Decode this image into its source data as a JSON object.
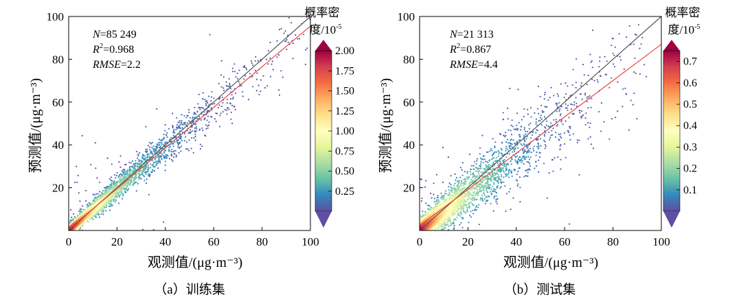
{
  "chart_data": [
    {
      "type": "scatter",
      "caption": "（a）训练集",
      "xlabel": "观测值/(μg·m⁻³)",
      "ylabel": "预测值/(μg·m⁻³)",
      "xlim": [
        0,
        100
      ],
      "ylim": [
        0,
        100
      ],
      "xticks": [
        "0",
        "20",
        "40",
        "60",
        "80",
        "100"
      ],
      "yticks": [
        "20",
        "40",
        "60",
        "80",
        "100"
      ],
      "stats": {
        "n_label": "N",
        "n_value": "=85 249",
        "r2_label": "R",
        "r2_sup": "2",
        "r2_value": "=0.968",
        "rmse_label": "RMSE",
        "rmse_value": "=2.2"
      },
      "colorbar": {
        "title_line1": "概率密",
        "title_line2": "度/10",
        "title_sup": "-5",
        "min": 0,
        "max": 2.0,
        "ticks": [
          "0.25",
          "0.50",
          "0.75",
          "1.00",
          "1.25",
          "1.50",
          "1.75",
          "2.00"
        ],
        "tick_values": [
          0.25,
          0.5,
          0.75,
          1.0,
          1.25,
          1.5,
          1.75,
          2.0
        ]
      },
      "identity_line": {
        "x": [
          0,
          100
        ],
        "y": [
          0,
          100
        ],
        "color": "#555555"
      },
      "fit_line": {
        "x": [
          0,
          100
        ],
        "y": [
          0.6,
          95.5
        ],
        "color": "#e8413c"
      },
      "point_cloud": {
        "x_range": [
          0,
          100
        ],
        "slope": 0.96,
        "spread": 2.2
      }
    },
    {
      "type": "scatter",
      "caption": "（b）测试集",
      "xlabel": "观测值/(μg·m⁻³)",
      "ylabel": "预测值/(μg·m⁻³)",
      "xlim": [
        0,
        100
      ],
      "ylim": [
        0,
        100
      ],
      "xticks": [
        "0",
        "20",
        "40",
        "60",
        "80",
        "100"
      ],
      "yticks": [
        "20",
        "40",
        "60",
        "80",
        "100"
      ],
      "stats": {
        "n_label": "N",
        "n_value": "=21 313",
        "r2_label": "R",
        "r2_sup": "2",
        "r2_value": "=0.867",
        "rmse_label": "RMSE",
        "rmse_value": "=4.4"
      },
      "colorbar": {
        "title_line1": "概率密",
        "title_line2": "度/10",
        "title_sup": "-5",
        "min": 0,
        "max": 0.75,
        "ticks": [
          "0.1",
          "0.2",
          "0.3",
          "0.4",
          "0.5",
          "0.6",
          "0.7"
        ],
        "tick_values": [
          0.1,
          0.2,
          0.3,
          0.4,
          0.5,
          0.6,
          0.7
        ]
      },
      "identity_line": {
        "x": [
          0,
          100
        ],
        "y": [
          0,
          100
        ],
        "color": "#555555"
      },
      "fit_line": {
        "x": [
          0,
          100
        ],
        "y": [
          2.2,
          87
        ],
        "color": "#e8413c"
      },
      "point_cloud": {
        "x_range": [
          0,
          95
        ],
        "slope": 0.87,
        "spread": 4.4
      }
    }
  ],
  "colormap": [
    "#5e4fa2",
    "#3288bd",
    "#66c2a5",
    "#abdda4",
    "#e6f598",
    "#ffffbf",
    "#fee08b",
    "#fdae61",
    "#f46d43",
    "#d53e4f",
    "#9e0142"
  ]
}
